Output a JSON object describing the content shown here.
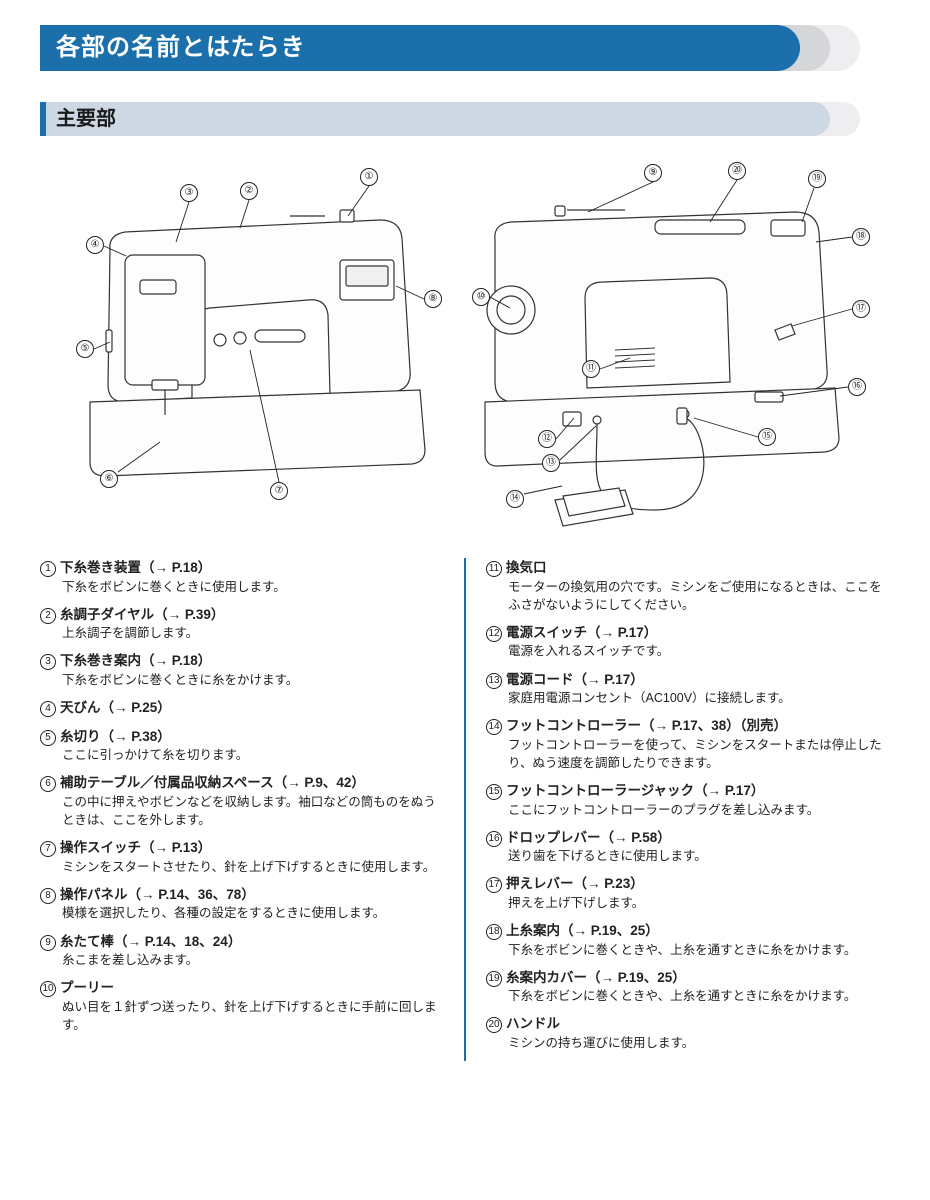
{
  "title": "各部の名前とはたらき",
  "subheading": "主要部",
  "colors": {
    "title_bg": "#1b6fab",
    "title_shadow1": "#d5d6d8",
    "title_shadow2": "#eeeef0",
    "sub_bg": "#cdd8e4",
    "divider": "#1b6fab"
  },
  "diagram": {
    "left_callouts": [
      "①",
      "②",
      "③",
      "④",
      "⑤",
      "⑥",
      "⑦",
      "⑧"
    ],
    "right_callouts": [
      "⑨",
      "⑩",
      "⑪",
      "⑫",
      "⑬",
      "⑭",
      "⑮",
      "⑯",
      "⑰",
      "⑱",
      "⑲",
      "⑳"
    ]
  },
  "left_items": [
    {
      "num": "①",
      "title": "下糸巻き装置",
      "ref": "（→ P.18）",
      "desc": "下糸をボビンに巻くときに使用します。"
    },
    {
      "num": "②",
      "title": "糸調子ダイヤル",
      "ref": "（→ P.39）",
      "desc": "上糸調子を調節します。"
    },
    {
      "num": "③",
      "title": "下糸巻き案内",
      "ref": "（→ P.18）",
      "desc": "下糸をボビンに巻くときに糸をかけます。"
    },
    {
      "num": "④",
      "title": "天びん",
      "ref": "（→ P.25）",
      "desc": ""
    },
    {
      "num": "⑤",
      "title": "糸切り",
      "ref": "（→ P.38）",
      "desc": "ここに引っかけて糸を切ります。"
    },
    {
      "num": "⑥",
      "title": "補助テーブル／付属品収納スペース",
      "ref": "（→ P.9、42）",
      "desc": "この中に押えやボビンなどを収納します。袖口などの筒ものをぬうときは、ここを外します。"
    },
    {
      "num": "⑦",
      "title": "操作スイッチ",
      "ref": "（→ P.13）",
      "desc": "ミシンをスタートさせたり、針を上げ下げするときに使用します。"
    },
    {
      "num": "⑧",
      "title": "操作パネル",
      "ref": "（→ P.14、36、78）",
      "desc": "模様を選択したり、各種の設定をするときに使用します。"
    },
    {
      "num": "⑨",
      "title": "糸たて棒",
      "ref": "（→ P.14、18、24）",
      "desc": "糸こまを差し込みます。"
    },
    {
      "num": "⑩",
      "title": "プーリー",
      "ref": "",
      "desc": "ぬい目を１針ずつ送ったり、針を上げ下げするときに手前に回します。"
    }
  ],
  "right_items": [
    {
      "num": "⑪",
      "title": "換気口",
      "ref": "",
      "desc": "モーターの換気用の穴です。ミシンをご使用になるときは、ここをふさがないようにしてください。"
    },
    {
      "num": "⑫",
      "title": "電源スイッチ",
      "ref": "（→ P.17）",
      "desc": "電源を入れるスイッチです。"
    },
    {
      "num": "⑬",
      "title": "電源コード",
      "ref": "（→ P.17）",
      "desc": "家庭用電源コンセント（AC100V）に接続します。"
    },
    {
      "num": "⑭",
      "title": "フットコントローラー",
      "ref": "（→ P.17、38）（別売）",
      "desc": "フットコントローラーを使って、ミシンをスタートまたは停止したり、ぬう速度を調節したりできます。"
    },
    {
      "num": "⑮",
      "title": "フットコントローラージャック",
      "ref": "（→ P.17）",
      "desc": "ここにフットコントローラーのプラグを差し込みます。"
    },
    {
      "num": "⑯",
      "title": "ドロップレバー",
      "ref": "（→ P.58）",
      "desc": "送り歯を下げるときに使用します。"
    },
    {
      "num": "⑰",
      "title": "押えレバー",
      "ref": "（→ P.23）",
      "desc": "押えを上げ下げします。"
    },
    {
      "num": "⑱",
      "title": "上糸案内",
      "ref": "（→ P.19、25）",
      "desc": "下糸をボビンに巻くときや、上糸を通すときに糸をかけます。"
    },
    {
      "num": "⑲",
      "title": "糸案内カバー",
      "ref": "（→ P.19、25）",
      "desc": "下糸をボビンに巻くときや、上糸を通すときに糸をかけます。"
    },
    {
      "num": "⑳",
      "title": "ハンドル",
      "ref": "",
      "desc": "ミシンの持ち運びに使用します。"
    }
  ]
}
